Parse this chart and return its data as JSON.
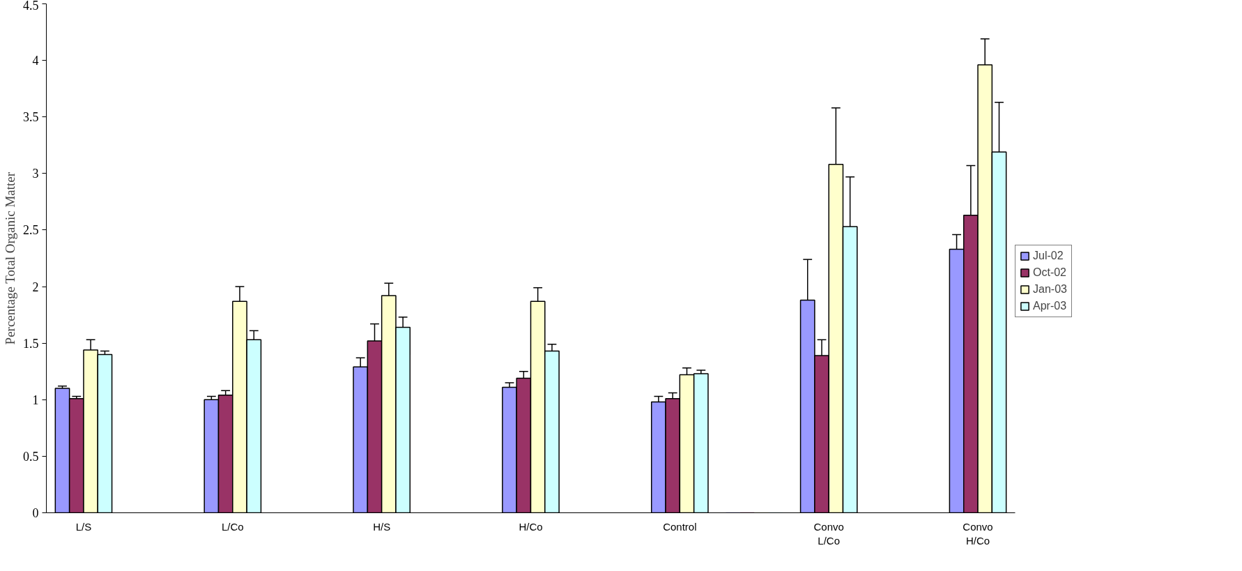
{
  "chart_data": {
    "type": "bar",
    "ylabel": "Percentage Total Organic Matter",
    "categories": [
      "L/S",
      null,
      "L/Co",
      null,
      "H/S",
      null,
      "H/Co",
      null,
      "Control",
      null,
      "Convo L/Co",
      null,
      "Convo H/Co"
    ],
    "series": [
      {
        "name": "Jul-02",
        "color": "#9999ff",
        "values": [
          1.1,
          null,
          1.0,
          null,
          1.29,
          null,
          1.11,
          null,
          0.98,
          0,
          1.88,
          null,
          2.33
        ],
        "errors": [
          [
            1.1,
            1.12
          ],
          null,
          [
            1.0,
            1.03
          ],
          null,
          [
            1.29,
            1.37
          ],
          null,
          [
            1.11,
            1.15
          ],
          null,
          [
            0.98,
            1.03
          ],
          null,
          [
            1.88,
            2.24
          ],
          null,
          [
            2.33,
            2.46
          ]
        ]
      },
      {
        "name": "Oct-02",
        "color": "#993366",
        "values": [
          1.01,
          null,
          1.04,
          null,
          1.52,
          null,
          1.19,
          null,
          1.01,
          0,
          1.39,
          null,
          2.63
        ],
        "errors": [
          [
            1.01,
            1.03
          ],
          null,
          [
            1.04,
            1.08
          ],
          null,
          [
            1.52,
            1.67
          ],
          null,
          [
            1.19,
            1.25
          ],
          null,
          [
            1.01,
            1.06
          ],
          null,
          [
            1.39,
            1.53
          ],
          null,
          [
            2.63,
            3.07
          ]
        ]
      },
      {
        "name": "Jan-03",
        "color": "#ffffcc",
        "values": [
          1.44,
          null,
          1.87,
          null,
          1.92,
          null,
          1.87,
          null,
          1.22,
          0,
          3.08,
          null,
          3.96
        ],
        "errors": [
          [
            1.44,
            1.53
          ],
          null,
          [
            1.87,
            2.0
          ],
          null,
          [
            1.92,
            2.03
          ],
          null,
          [
            1.87,
            1.99
          ],
          null,
          [
            1.22,
            1.28
          ],
          null,
          [
            3.08,
            3.58
          ],
          null,
          [
            3.96,
            4.19
          ]
        ]
      },
      {
        "name": "Apr-03",
        "color": "#ccffff",
        "values": [
          1.4,
          null,
          1.53,
          null,
          1.64,
          null,
          1.43,
          null,
          1.23,
          0,
          2.53,
          null,
          3.19
        ],
        "errors": [
          [
            1.4,
            1.43
          ],
          null,
          [
            1.53,
            1.61
          ],
          null,
          [
            1.64,
            1.73
          ],
          null,
          [
            1.43,
            1.49
          ],
          null,
          [
            1.23,
            1.26
          ],
          null,
          [
            2.53,
            2.97
          ],
          null,
          [
            3.19,
            3.63
          ]
        ]
      }
    ],
    "ylim": [
      0,
      4.5
    ],
    "yticks": [
      0,
      0.5,
      1,
      1.5,
      2,
      2.5,
      3,
      3.5,
      4,
      4.5
    ],
    "legend": "right"
  }
}
